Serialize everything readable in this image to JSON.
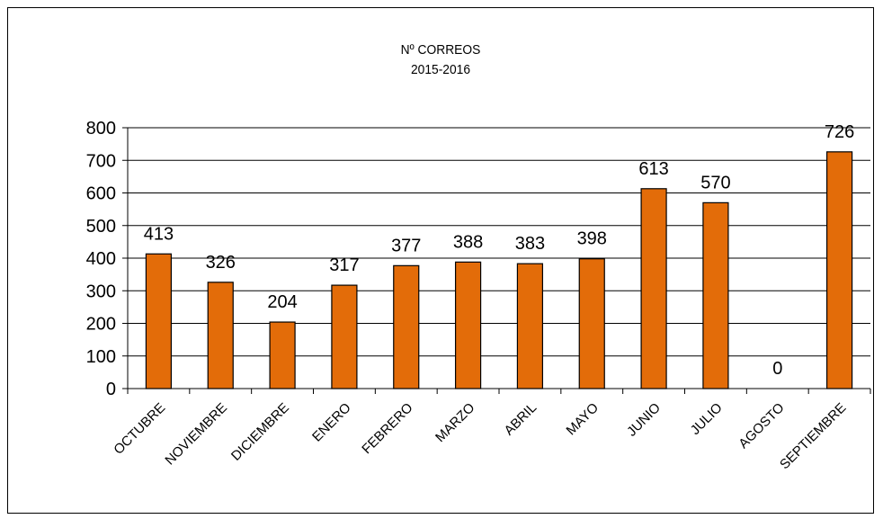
{
  "chart_data": {
    "type": "bar",
    "title": "Nº CORREOS",
    "subtitle": "2015-2016",
    "categories": [
      "OCTUBRE",
      "NOVIEMBRE",
      "DICIEMBRE",
      "ENERO",
      "FEBRERO",
      "MARZO",
      "ABRIL",
      "MAYO",
      "JUNIO",
      "JULIO",
      "AGOSTO",
      "SEPTIEMBRE"
    ],
    "values": [
      413,
      326,
      204,
      317,
      377,
      388,
      383,
      398,
      613,
      570,
      0,
      726
    ],
    "ylim": [
      0,
      800
    ],
    "yticks": [
      0,
      100,
      200,
      300,
      400,
      500,
      600,
      700,
      800
    ],
    "grid": true,
    "data_labels": true,
    "bar_color": "#e36c09",
    "bar_edge_color": "#000000"
  }
}
